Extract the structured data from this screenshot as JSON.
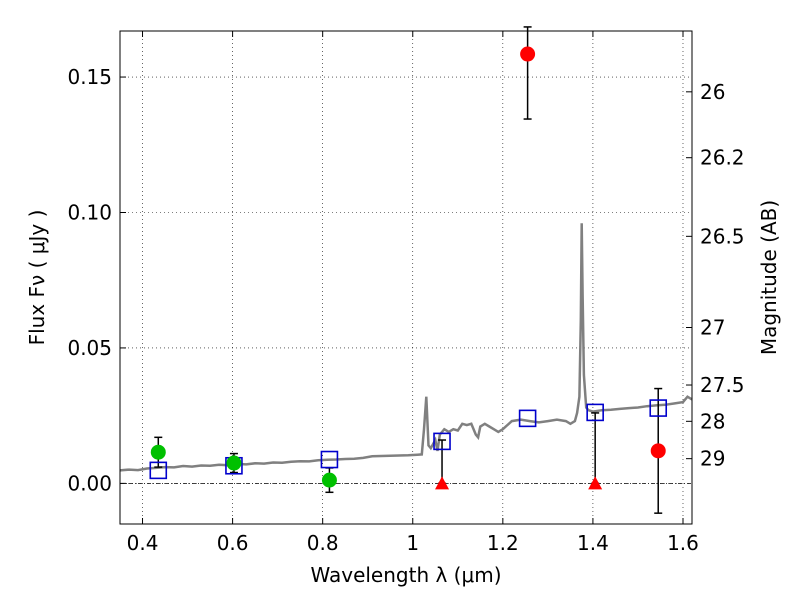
{
  "chart_data": {
    "type": "scatter",
    "xlabel": "Wavelength  λ (μm)",
    "ylabel": "Flux  Fν  ( μJy )",
    "ylabel_right": "Magnitude (AB)",
    "xlim": [
      0.35,
      1.62
    ],
    "ylim": [
      -0.015,
      0.167
    ],
    "grid": true,
    "x_ticks": [
      {
        "value": 0.4,
        "label": "0.4"
      },
      {
        "value": 0.6,
        "label": "0.6"
      },
      {
        "value": 0.8,
        "label": "0.8"
      },
      {
        "value": 1.0,
        "label": "1"
      },
      {
        "value": 1.2,
        "label": "1.2"
      },
      {
        "value": 1.4,
        "label": "1.4"
      },
      {
        "value": 1.6,
        "label": "1.6"
      }
    ],
    "y_ticks": [
      {
        "value": 0.0,
        "label": "0.00"
      },
      {
        "value": 0.05,
        "label": "0.05"
      },
      {
        "value": 0.1,
        "label": "0.10"
      },
      {
        "value": 0.15,
        "label": "0.15"
      }
    ],
    "right_ticks": [
      {
        "mag": 26,
        "label": "26"
      },
      {
        "mag": 26.2,
        "label": "26.2"
      },
      {
        "mag": 26.5,
        "label": "26.5"
      },
      {
        "mag": 27,
        "label": "27"
      },
      {
        "mag": 27.5,
        "label": "27.5"
      },
      {
        "mag": 28,
        "label": "28"
      },
      {
        "mag": 29,
        "label": "29"
      }
    ],
    "colors": {
      "model": "#808080",
      "green": "#00c000",
      "red": "#ff0000",
      "box": "#0000cc",
      "err": "#000000"
    },
    "model_spectrum": {
      "name": "",
      "points": [
        [
          0.35,
          0.0048
        ],
        [
          0.37,
          0.0051
        ],
        [
          0.39,
          0.0049
        ],
        [
          0.41,
          0.0055
        ],
        [
          0.43,
          0.0057
        ],
        [
          0.45,
          0.006
        ],
        [
          0.47,
          0.0059
        ],
        [
          0.49,
          0.0064
        ],
        [
          0.51,
          0.0062
        ],
        [
          0.53,
          0.0066
        ],
        [
          0.55,
          0.0065
        ],
        [
          0.57,
          0.0069
        ],
        [
          0.59,
          0.0067
        ],
        [
          0.61,
          0.0072
        ],
        [
          0.63,
          0.007
        ],
        [
          0.65,
          0.0074
        ],
        [
          0.67,
          0.0073
        ],
        [
          0.69,
          0.0077
        ],
        [
          0.71,
          0.0076
        ],
        [
          0.73,
          0.008
        ],
        [
          0.75,
          0.0082
        ],
        [
          0.77,
          0.0081
        ],
        [
          0.79,
          0.0085
        ],
        [
          0.81,
          0.0087
        ],
        [
          0.83,
          0.0088
        ],
        [
          0.85,
          0.009
        ],
        [
          0.87,
          0.0091
        ],
        [
          0.89,
          0.0094
        ],
        [
          0.91,
          0.01
        ],
        [
          0.93,
          0.0101
        ],
        [
          0.95,
          0.0102
        ],
        [
          0.97,
          0.0103
        ],
        [
          0.99,
          0.0104
        ],
        [
          1.01,
          0.0106
        ],
        [
          1.02,
          0.0107
        ],
        [
          1.025,
          0.02
        ],
        [
          1.03,
          0.032
        ],
        [
          1.035,
          0.014
        ],
        [
          1.04,
          0.013
        ],
        [
          1.05,
          0.016
        ],
        [
          1.055,
          0.012
        ],
        [
          1.06,
          0.018
        ],
        [
          1.07,
          0.02
        ],
        [
          1.08,
          0.019
        ],
        [
          1.09,
          0.02
        ],
        [
          1.1,
          0.0195
        ],
        [
          1.11,
          0.022
        ],
        [
          1.12,
          0.0215
        ],
        [
          1.13,
          0.022
        ],
        [
          1.14,
          0.018
        ],
        [
          1.145,
          0.017
        ],
        [
          1.15,
          0.021
        ],
        [
          1.16,
          0.022
        ],
        [
          1.17,
          0.021
        ],
        [
          1.18,
          0.02
        ],
        [
          1.19,
          0.019
        ],
        [
          1.2,
          0.02
        ],
        [
          1.22,
          0.023
        ],
        [
          1.24,
          0.0235
        ],
        [
          1.26,
          0.023
        ],
        [
          1.28,
          0.0225
        ],
        [
          1.3,
          0.023
        ],
        [
          1.32,
          0.0235
        ],
        [
          1.34,
          0.023
        ],
        [
          1.35,
          0.022
        ],
        [
          1.36,
          0.023
        ],
        [
          1.365,
          0.026
        ],
        [
          1.37,
          0.032
        ],
        [
          1.373,
          0.06
        ],
        [
          1.375,
          0.096
        ],
        [
          1.377,
          0.07
        ],
        [
          1.38,
          0.04
        ],
        [
          1.385,
          0.028
        ],
        [
          1.39,
          0.027
        ],
        [
          1.4,
          0.0265
        ],
        [
          1.42,
          0.027
        ],
        [
          1.44,
          0.0272
        ],
        [
          1.46,
          0.0275
        ],
        [
          1.48,
          0.0278
        ],
        [
          1.5,
          0.028
        ],
        [
          1.52,
          0.0285
        ],
        [
          1.54,
          0.0288
        ],
        [
          1.56,
          0.029
        ],
        [
          1.58,
          0.0295
        ],
        [
          1.6,
          0.03
        ],
        [
          1.61,
          0.032
        ],
        [
          1.62,
          0.031
        ]
      ]
    },
    "green_points": [
      {
        "x": 0.435,
        "y": 0.0115,
        "yerr_low": 0.0055,
        "yerr_high": 0.0055
      },
      {
        "x": 0.603,
        "y": 0.0075,
        "yerr_low": 0.0035,
        "yerr_high": 0.0035
      },
      {
        "x": 0.815,
        "y": 0.0012,
        "yerr_low": 0.0045,
        "yerr_high": 0.0045
      }
    ],
    "red_points": [
      {
        "x": 1.255,
        "y": 0.1585,
        "yerr_low": 0.024,
        "yerr_high": 0.01
      },
      {
        "x": 1.545,
        "y": 0.012,
        "yerr_low": 0.023,
        "yerr_high": 0.023
      }
    ],
    "red_upper_limits": [
      {
        "x": 1.065,
        "y": 0.0,
        "upper": 0.016
      },
      {
        "x": 1.405,
        "y": 0.0,
        "upper": 0.026
      }
    ],
    "model_boxes": [
      {
        "x": 0.435,
        "y": 0.0048
      },
      {
        "x": 0.603,
        "y": 0.0065
      },
      {
        "x": 0.815,
        "y": 0.0088
      },
      {
        "x": 1.065,
        "y": 0.0155
      },
      {
        "x": 1.255,
        "y": 0.024
      },
      {
        "x": 1.405,
        "y": 0.0262
      },
      {
        "x": 1.545,
        "y": 0.0278
      }
    ]
  }
}
